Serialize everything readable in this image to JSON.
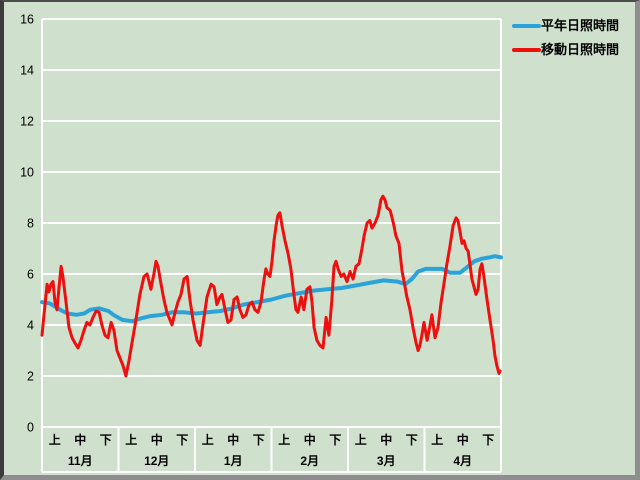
{
  "window": {
    "background_color": "#cfe0cc",
    "grid_color": "#ffffff",
    "text_color": "#000000"
  },
  "legend": {
    "position": "top-right",
    "items": [
      {
        "label": "平年日照時間",
        "color": "#2aa4d8"
      },
      {
        "label": "移動日照時間",
        "color": "#ee0f0f"
      }
    ]
  },
  "chart_data": {
    "type": "line",
    "title": "",
    "grid": true,
    "legend_position": "top-right",
    "y_axis": {
      "min": 0,
      "max": 16,
      "tick_step": 2,
      "ticks": [
        0,
        2,
        4,
        6,
        8,
        10,
        12,
        14,
        16
      ]
    },
    "x_axis": {
      "months": [
        "11月",
        "12月",
        "1月",
        "2月",
        "3月",
        "4月"
      ],
      "period_labels": [
        "上",
        "中",
        "下"
      ],
      "periods_per_month": 3,
      "total_periods": 18,
      "note": "x values below are in ten-day-period units, 0 = start of 11月上, 18 = end of 4月下"
    },
    "series": [
      {
        "name": "平年日照時間",
        "color": "#2aa4d8",
        "width": 4,
        "points": [
          [
            0,
            4.9
          ],
          [
            0.3,
            4.85
          ],
          [
            0.55,
            4.7
          ],
          [
            0.8,
            4.55
          ],
          [
            1.0,
            4.45
          ],
          [
            1.35,
            4.4
          ],
          [
            1.65,
            4.45
          ],
          [
            1.9,
            4.6
          ],
          [
            2.25,
            4.65
          ],
          [
            2.6,
            4.55
          ],
          [
            2.8,
            4.4
          ],
          [
            3.15,
            4.2
          ],
          [
            3.55,
            4.15
          ],
          [
            3.85,
            4.25
          ],
          [
            4.25,
            4.35
          ],
          [
            4.7,
            4.4
          ],
          [
            5.1,
            4.5
          ],
          [
            5.55,
            4.5
          ],
          [
            6.05,
            4.45
          ],
          [
            6.5,
            4.5
          ],
          [
            7.0,
            4.55
          ],
          [
            7.45,
            4.65
          ],
          [
            7.9,
            4.8
          ],
          [
            8.45,
            4.9
          ],
          [
            9.0,
            5.0
          ],
          [
            9.55,
            5.15
          ],
          [
            10.1,
            5.25
          ],
          [
            10.65,
            5.35
          ],
          [
            11.2,
            5.4
          ],
          [
            11.75,
            5.45
          ],
          [
            12.3,
            5.55
          ],
          [
            12.85,
            5.65
          ],
          [
            13.4,
            5.75
          ],
          [
            13.95,
            5.7
          ],
          [
            14.25,
            5.6
          ],
          [
            14.5,
            5.8
          ],
          [
            14.75,
            6.1
          ],
          [
            15.05,
            6.2
          ],
          [
            15.7,
            6.2
          ],
          [
            16.0,
            6.05
          ],
          [
            16.4,
            6.05
          ],
          [
            16.65,
            6.25
          ],
          [
            16.95,
            6.5
          ],
          [
            17.25,
            6.6
          ],
          [
            17.55,
            6.65
          ],
          [
            17.75,
            6.7
          ],
          [
            18,
            6.65
          ]
        ]
      },
      {
        "name": "移動日照時間",
        "color": "#ee0f0f",
        "width": 3,
        "points": [
          [
            0,
            3.6
          ],
          [
            0.08,
            4.4
          ],
          [
            0.2,
            5.6
          ],
          [
            0.27,
            5.3
          ],
          [
            0.35,
            5.6
          ],
          [
            0.43,
            5.7
          ],
          [
            0.51,
            4.9
          ],
          [
            0.59,
            4.6
          ],
          [
            0.67,
            5.5
          ],
          [
            0.75,
            6.3
          ],
          [
            0.82,
            5.9
          ],
          [
            0.94,
            4.9
          ],
          [
            1.06,
            3.9
          ],
          [
            1.18,
            3.5
          ],
          [
            1.29,
            3.3
          ],
          [
            1.41,
            3.1
          ],
          [
            1.53,
            3.4
          ],
          [
            1.65,
            3.8
          ],
          [
            1.76,
            4.1
          ],
          [
            1.88,
            4.0
          ],
          [
            2.0,
            4.3
          ],
          [
            2.12,
            4.55
          ],
          [
            2.24,
            4.5
          ],
          [
            2.35,
            4.0
          ],
          [
            2.47,
            3.6
          ],
          [
            2.59,
            3.5
          ],
          [
            2.71,
            4.1
          ],
          [
            2.82,
            3.8
          ],
          [
            2.94,
            3.0
          ],
          [
            3.06,
            2.7
          ],
          [
            3.18,
            2.4
          ],
          [
            3.29,
            2.0
          ],
          [
            3.41,
            2.6
          ],
          [
            3.53,
            3.3
          ],
          [
            3.65,
            4.0
          ],
          [
            3.73,
            4.5
          ],
          [
            3.84,
            5.2
          ],
          [
            4.0,
            5.9
          ],
          [
            4.12,
            6.0
          ],
          [
            4.2,
            5.7
          ],
          [
            4.27,
            5.4
          ],
          [
            4.39,
            6.0
          ],
          [
            4.47,
            6.5
          ],
          [
            4.55,
            6.3
          ],
          [
            4.67,
            5.6
          ],
          [
            4.78,
            5.0
          ],
          [
            4.9,
            4.5
          ],
          [
            5.02,
            4.2
          ],
          [
            5.1,
            4.0
          ],
          [
            5.22,
            4.5
          ],
          [
            5.33,
            4.9
          ],
          [
            5.45,
            5.2
          ],
          [
            5.57,
            5.8
          ],
          [
            5.69,
            5.9
          ],
          [
            5.8,
            5.0
          ],
          [
            5.92,
            4.2
          ],
          [
            6.08,
            3.4
          ],
          [
            6.2,
            3.2
          ],
          [
            6.31,
            4.0
          ],
          [
            6.47,
            5.1
          ],
          [
            6.63,
            5.6
          ],
          [
            6.75,
            5.5
          ],
          [
            6.86,
            4.8
          ],
          [
            6.98,
            5.1
          ],
          [
            7.06,
            5.2
          ],
          [
            7.18,
            4.6
          ],
          [
            7.29,
            4.1
          ],
          [
            7.41,
            4.2
          ],
          [
            7.53,
            5.0
          ],
          [
            7.65,
            5.1
          ],
          [
            7.76,
            4.6
          ],
          [
            7.88,
            4.3
          ],
          [
            8.0,
            4.4
          ],
          [
            8.12,
            4.8
          ],
          [
            8.24,
            4.9
          ],
          [
            8.35,
            4.6
          ],
          [
            8.47,
            4.5
          ],
          [
            8.59,
            4.9
          ],
          [
            8.71,
            5.8
          ],
          [
            8.78,
            6.2
          ],
          [
            8.86,
            6.0
          ],
          [
            8.94,
            5.9
          ],
          [
            9.02,
            6.5
          ],
          [
            9.1,
            7.3
          ],
          [
            9.18,
            7.9
          ],
          [
            9.25,
            8.3
          ],
          [
            9.33,
            8.4
          ],
          [
            9.41,
            7.9
          ],
          [
            9.53,
            7.3
          ],
          [
            9.65,
            6.8
          ],
          [
            9.76,
            6.2
          ],
          [
            9.88,
            5.2
          ],
          [
            9.96,
            4.6
          ],
          [
            10.04,
            4.5
          ],
          [
            10.16,
            5.1
          ],
          [
            10.27,
            4.6
          ],
          [
            10.39,
            5.4
          ],
          [
            10.51,
            5.5
          ],
          [
            10.59,
            4.9
          ],
          [
            10.67,
            3.9
          ],
          [
            10.78,
            3.4
          ],
          [
            10.9,
            3.2
          ],
          [
            11.02,
            3.1
          ],
          [
            11.14,
            4.3
          ],
          [
            11.25,
            3.6
          ],
          [
            11.37,
            5.0
          ],
          [
            11.45,
            6.3
          ],
          [
            11.53,
            6.5
          ],
          [
            11.61,
            6.2
          ],
          [
            11.73,
            5.9
          ],
          [
            11.84,
            6.0
          ],
          [
            11.96,
            5.7
          ],
          [
            12.08,
            6.1
          ],
          [
            12.2,
            5.8
          ],
          [
            12.31,
            6.3
          ],
          [
            12.43,
            6.4
          ],
          [
            12.55,
            7.0
          ],
          [
            12.63,
            7.5
          ],
          [
            12.75,
            8.0
          ],
          [
            12.86,
            8.1
          ],
          [
            12.94,
            7.8
          ],
          [
            13.06,
            8.0
          ],
          [
            13.18,
            8.3
          ],
          [
            13.29,
            8.9
          ],
          [
            13.37,
            9.05
          ],
          [
            13.45,
            8.9
          ],
          [
            13.53,
            8.6
          ],
          [
            13.65,
            8.5
          ],
          [
            13.73,
            8.2
          ],
          [
            13.8,
            7.9
          ],
          [
            13.88,
            7.5
          ],
          [
            14.0,
            7.2
          ],
          [
            14.12,
            6.1
          ],
          [
            14.2,
            5.7
          ],
          [
            14.31,
            5.1
          ],
          [
            14.43,
            4.6
          ],
          [
            14.55,
            3.9
          ],
          [
            14.67,
            3.3
          ],
          [
            14.75,
            3.0
          ],
          [
            14.82,
            3.2
          ],
          [
            14.9,
            3.6
          ],
          [
            14.98,
            4.1
          ],
          [
            15.1,
            3.4
          ],
          [
            15.22,
            4.0
          ],
          [
            15.29,
            4.4
          ],
          [
            15.41,
            3.5
          ],
          [
            15.53,
            3.9
          ],
          [
            15.65,
            4.9
          ],
          [
            15.76,
            5.6
          ],
          [
            15.88,
            6.4
          ],
          [
            16.0,
            7.1
          ],
          [
            16.12,
            7.9
          ],
          [
            16.24,
            8.2
          ],
          [
            16.31,
            8.1
          ],
          [
            16.39,
            7.7
          ],
          [
            16.47,
            7.2
          ],
          [
            16.55,
            7.3
          ],
          [
            16.63,
            7.0
          ],
          [
            16.71,
            6.9
          ],
          [
            16.78,
            6.4
          ],
          [
            16.86,
            5.8
          ],
          [
            16.94,
            5.5
          ],
          [
            17.02,
            5.2
          ],
          [
            17.1,
            5.4
          ],
          [
            17.18,
            6.2
          ],
          [
            17.25,
            6.4
          ],
          [
            17.33,
            5.9
          ],
          [
            17.45,
            5.0
          ],
          [
            17.57,
            4.2
          ],
          [
            17.69,
            3.4
          ],
          [
            17.76,
            2.8
          ],
          [
            17.84,
            2.4
          ],
          [
            17.92,
            2.1
          ],
          [
            17.96,
            2.2
          ]
        ]
      }
    ]
  }
}
